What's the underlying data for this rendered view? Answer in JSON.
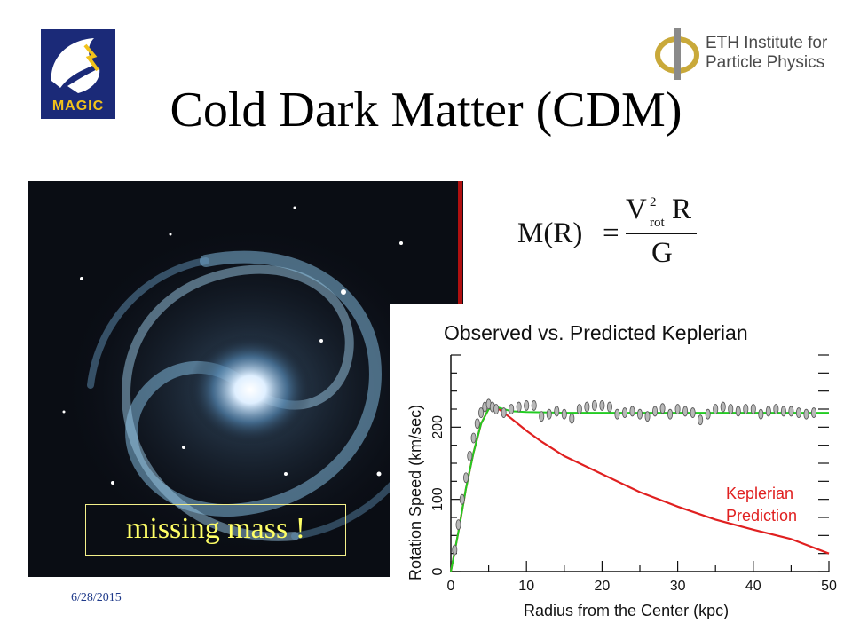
{
  "title": "Cold Dark Matter (CDM)",
  "logos": {
    "magic": {
      "text": "MAGIC",
      "colors": {
        "bg": "#1b2a78",
        "accent": "#f2c21a"
      }
    },
    "eth": {
      "line1": "ETH Institute for",
      "line2": "Particle Physics",
      "symbol": "phi-symbol"
    }
  },
  "galaxy": {
    "label": "missing mass !",
    "label_color": "#ffff66"
  },
  "formula": {
    "lhs": "M(R)",
    "eq": "=",
    "num_var": "V",
    "num_sup": "2",
    "num_sub": "rot",
    "num_tail": "R",
    "den": "G"
  },
  "date": "6/28/2015",
  "chart_data": {
    "type": "line",
    "title": "Observed vs. Predicted Keplerian",
    "xlabel": "Radius from the Center (kpc)",
    "ylabel": "Rotation Speed (km/sec)",
    "xlim": [
      0,
      50
    ],
    "ylim": [
      0,
      300
    ],
    "xticks": [
      0,
      10,
      20,
      30,
      40,
      50
    ],
    "yticks": [
      0,
      100,
      200
    ],
    "annotation": {
      "line1": "Keplerian",
      "line2": "Prediction",
      "color": "#e02020"
    },
    "series": [
      {
        "role": "observed",
        "color": "#888888",
        "x": [
          0.5,
          1,
          1.5,
          2,
          2.5,
          3,
          3.5,
          4,
          4.5,
          5,
          5.5,
          6,
          7,
          8,
          9,
          10,
          11,
          12,
          13,
          14,
          15,
          16,
          17,
          18,
          19,
          20,
          21,
          22,
          23,
          24,
          25,
          26,
          27,
          28,
          29,
          30,
          31,
          32,
          33,
          34,
          35,
          36,
          37,
          38,
          39,
          40,
          41,
          42,
          43,
          44,
          45,
          46,
          47,
          48
        ],
        "y": [
          30,
          65,
          100,
          130,
          160,
          185,
          205,
          220,
          228,
          232,
          228,
          225,
          220,
          225,
          228,
          230,
          230,
          215,
          218,
          222,
          218,
          212,
          225,
          228,
          230,
          230,
          228,
          218,
          220,
          222,
          218,
          215,
          222,
          226,
          218,
          225,
          222,
          220,
          210,
          218,
          225,
          228,
          225,
          222,
          225,
          225,
          218,
          222,
          225,
          222,
          222,
          220,
          218,
          220
        ]
      },
      {
        "role": "fit",
        "color": "#22cc22",
        "x": [
          0,
          1,
          2,
          3,
          4,
          5,
          6,
          7,
          8,
          10,
          15,
          20,
          25,
          30,
          35,
          40,
          45,
          50
        ],
        "y": [
          0,
          55,
          115,
          165,
          205,
          225,
          228,
          225,
          222,
          221,
          220,
          220,
          220,
          220,
          220,
          220,
          220,
          220
        ]
      },
      {
        "role": "keplerian",
        "color": "#e02020",
        "x": [
          0,
          1,
          2,
          3,
          4,
          5,
          6,
          7,
          8,
          10,
          12,
          15,
          20,
          25,
          30,
          35,
          40,
          45,
          50
        ],
        "y": [
          0,
          55,
          115,
          165,
          205,
          225,
          228,
          220,
          212,
          195,
          180,
          160,
          135,
          110,
          90,
          72,
          58,
          45,
          25
        ]
      }
    ]
  }
}
